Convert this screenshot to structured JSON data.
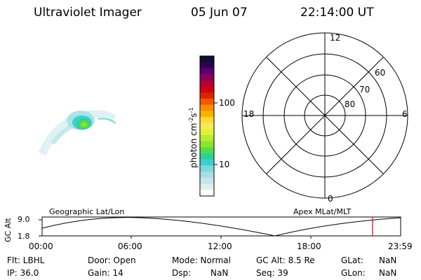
{
  "header": {
    "instrument": "Ultraviolet Imager",
    "date": "05 Jun 07",
    "time": "22:14:00 UT"
  },
  "colorbar": {
    "label": "photon cm",
    "exp1": "-2",
    "mid": "s",
    "exp2": "-1",
    "ticks": [
      "100",
      "10"
    ],
    "colors": [
      "#ffffff",
      "#dfeef0",
      "#c5e6ea",
      "#a6dfe4",
      "#7bd9d9",
      "#3ccfd0",
      "#2bd19a",
      "#55dd44",
      "#8de32e",
      "#b8ea2d",
      "#e8ef3a",
      "#f5e85a",
      "#ffda2b",
      "#ffb000",
      "#ff8a00",
      "#f05a00",
      "#e02000",
      "#d0001a",
      "#b0003a",
      "#8a0060",
      "#5a0070",
      "#300050",
      "#101030"
    ]
  },
  "polar": {
    "labels": {
      "top": "12",
      "left": "18",
      "right": "6",
      "bottom": "0",
      "ring60": "60",
      "ring70": "70",
      "ring80": "80"
    }
  },
  "timeline": {
    "geo_label": "Geographic Lat/Lon",
    "apex_label": "Apex MLat/MLT",
    "y_axis_label": "GC Alt",
    "y_ticks": [
      "9.0",
      "1.8"
    ],
    "x_ticks": [
      "00:00",
      "06:00",
      "12:00",
      "18:00",
      "23:59"
    ],
    "marker_color": "#e00000"
  },
  "info": {
    "row1": {
      "flt": "Flt: LBHL",
      "door": "Door: Open",
      "mode": "Mode: Normal",
      "gcalt": "GC Alt: 8.5 Re",
      "glat_label": "GLat:",
      "glat_val": "NaN"
    },
    "row2": {
      "ip": "IP: 36.0",
      "gain": "Gain: 14",
      "dsp_label": "Dsp:",
      "dsp_val": "NaN",
      "seq": "Seq: 39",
      "glon_label": "GLon:",
      "glon_val": "NaN"
    }
  }
}
